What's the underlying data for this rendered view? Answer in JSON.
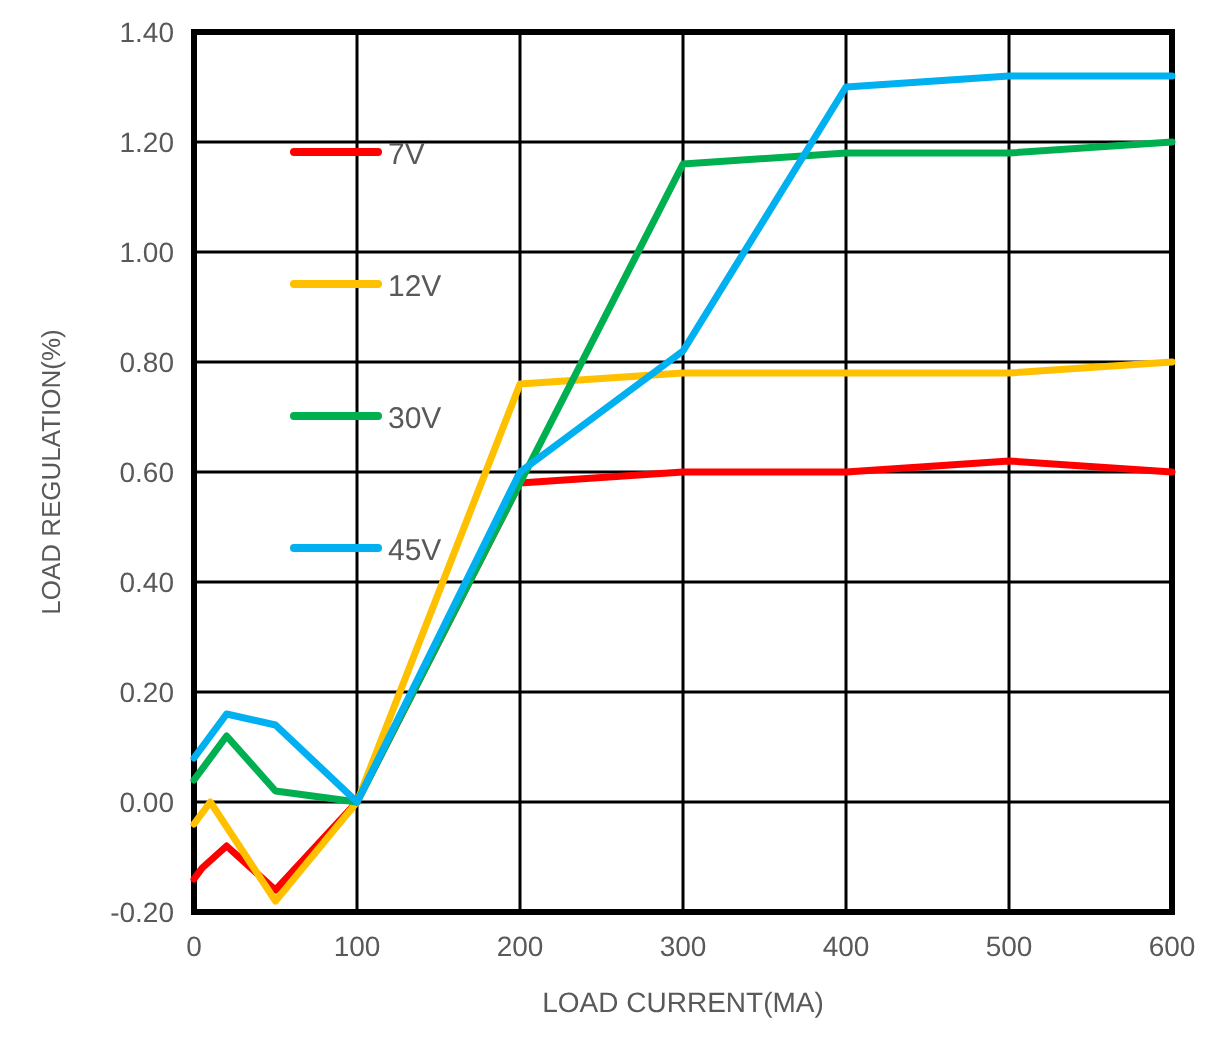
{
  "chart_data": {
    "type": "line",
    "xlabel": "LOAD CURRENT(MA)",
    "ylabel": "LOAD REGULATION(%)",
    "xlim": [
      0,
      600
    ],
    "xticks": [
      0,
      100,
      200,
      300,
      400,
      500,
      600
    ],
    "ylim": [
      -0.2,
      1.4
    ],
    "yticks": [
      {
        "value": -0.2,
        "label": "-0.20"
      },
      {
        "value": 0,
        "label": "0.00"
      },
      {
        "value": 0.2,
        "label": "0.20"
      },
      {
        "value": 0.4,
        "label": "0.40"
      },
      {
        "value": 0.6,
        "label": "0.60"
      },
      {
        "value": 0.8,
        "label": "0.80"
      },
      {
        "value": 1,
        "label": "1.00"
      },
      {
        "value": 1.2,
        "label": "1.20"
      },
      {
        "value": 1.4,
        "label": "1.40"
      }
    ],
    "grid": true,
    "legend": "top left",
    "marker": "none",
    "line_style": "solid",
    "series": [
      {
        "name": "7V",
        "color": "#ff0000",
        "x": [
          0,
          5,
          20,
          50,
          100,
          200,
          300,
          400,
          500,
          600
        ],
        "values": [
          -0.14,
          -0.12,
          -0.08,
          -0.16,
          0,
          0.58,
          0.6,
          0.6,
          0.62,
          0.6
        ]
      },
      {
        "name": "12V",
        "color": "#ffc000",
        "x": [
          0,
          10,
          50,
          100,
          200,
          300,
          400,
          500,
          600
        ],
        "values": [
          -0.04,
          0,
          -0.18,
          0,
          0.76,
          0.78,
          0.78,
          0.78,
          0.8
        ]
      },
      {
        "name": "30V",
        "color": "#00b050",
        "x": [
          0,
          20,
          50,
          100,
          200,
          300,
          400,
          500,
          600
        ],
        "values": [
          0.04,
          0.12,
          0.02,
          0,
          0.58,
          1.16,
          1.18,
          1.18,
          1.2
        ]
      },
      {
        "name": "45V",
        "color": "#00b0f0",
        "x": [
          0,
          20,
          50,
          100,
          200,
          300,
          400,
          500,
          600
        ],
        "values": [
          0.08,
          0.16,
          0.14,
          0,
          0.6,
          0.82,
          1.3,
          1.32,
          1.32
        ]
      }
    ]
  }
}
